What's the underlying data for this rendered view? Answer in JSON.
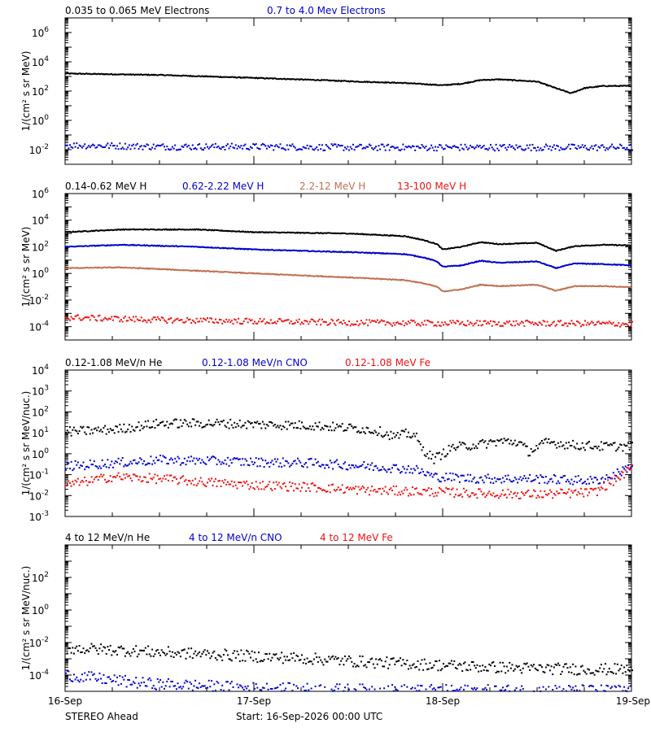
{
  "chart_data": [
    {
      "type": "scatter",
      "ylabel": "1/(cm² s sr MeV)",
      "yscale": "log",
      "ylim_log10": [
        -3,
        7
      ],
      "ytick_labels": [
        {
          "exp": 6,
          "base": "10",
          "sup": "6"
        },
        {
          "exp": 4,
          "base": "10",
          "sup": "4"
        },
        {
          "exp": 2,
          "base": "10",
          "sup": "2"
        },
        {
          "exp": 0,
          "base": "10",
          "sup": "0"
        },
        {
          "exp": -2,
          "base": "10",
          "sup": "-2"
        }
      ],
      "series": [
        {
          "name": "0.035 to 0.065 MeV Electrons",
          "color": "#000000",
          "style": "line",
          "points": [
            [
              0,
              3.2
            ],
            [
              0.5,
              3.1
            ],
            [
              1,
              2.9
            ],
            [
              1.35,
              2.75
            ],
            [
              1.55,
              2.65
            ],
            [
              1.8,
              2.55
            ],
            [
              2.0,
              2.4
            ],
            [
              2.1,
              2.5
            ],
            [
              2.2,
              2.75
            ],
            [
              2.3,
              2.8
            ],
            [
              2.5,
              2.65
            ],
            [
              2.6,
              2.2
            ],
            [
              2.68,
              1.85
            ],
            [
              2.75,
              2.2
            ],
            [
              2.85,
              2.35
            ],
            [
              3.0,
              2.35
            ]
          ]
        },
        {
          "name": "0.7 to 4.0 Mev Electrons",
          "color": "#0000cc",
          "style": "scatter",
          "points": [
            [
              0,
              -1.7
            ],
            [
              0.5,
              -1.8
            ],
            [
              1,
              -1.8
            ],
            [
              1.5,
              -1.85
            ],
            [
              2,
              -1.85
            ],
            [
              2.5,
              -1.85
            ],
            [
              3.0,
              -1.85
            ]
          ]
        }
      ]
    },
    {
      "type": "scatter",
      "ylabel": "1/(cm² s sr MeV)",
      "yscale": "log",
      "ylim_log10": [
        -5,
        6
      ],
      "ytick_labels": [
        {
          "exp": 6,
          "base": "10",
          "sup": "6"
        },
        {
          "exp": 4,
          "base": "10",
          "sup": "4"
        },
        {
          "exp": 2,
          "base": "10",
          "sup": "2"
        },
        {
          "exp": 0,
          "base": "10",
          "sup": "0"
        },
        {
          "exp": -2,
          "base": "10",
          "sup": "-2"
        },
        {
          "exp": -4,
          "base": "10",
          "sup": "-4"
        }
      ],
      "series": [
        {
          "name": "0.14-0.62 MeV H",
          "color": "#000000",
          "style": "line",
          "points": [
            [
              0,
              3.1
            ],
            [
              0.3,
              3.3
            ],
            [
              0.7,
              3.3
            ],
            [
              1,
              3.1
            ],
            [
              1.5,
              3.0
            ],
            [
              1.8,
              2.8
            ],
            [
              1.9,
              2.5
            ],
            [
              1.97,
              2.2
            ],
            [
              2.0,
              1.8
            ],
            [
              2.1,
              2.0
            ],
            [
              2.2,
              2.35
            ],
            [
              2.3,
              2.2
            ],
            [
              2.5,
              2.3
            ],
            [
              2.6,
              1.7
            ],
            [
              2.7,
              2.05
            ],
            [
              2.85,
              2.15
            ],
            [
              3.0,
              2.1
            ]
          ]
        },
        {
          "name": "0.62-2.22 MeV H",
          "color": "#0000cc",
          "style": "line",
          "points": [
            [
              0,
              2.0
            ],
            [
              0.3,
              2.15
            ],
            [
              0.7,
              2.0
            ],
            [
              1,
              1.8
            ],
            [
              1.5,
              1.6
            ],
            [
              1.8,
              1.45
            ],
            [
              1.9,
              1.2
            ],
            [
              1.97,
              0.9
            ],
            [
              2.0,
              0.5
            ],
            [
              2.1,
              0.6
            ],
            [
              2.2,
              0.95
            ],
            [
              2.3,
              0.8
            ],
            [
              2.5,
              0.9
            ],
            [
              2.6,
              0.4
            ],
            [
              2.7,
              0.75
            ],
            [
              2.85,
              0.7
            ],
            [
              3.0,
              0.6
            ]
          ]
        },
        {
          "name": "2.2-12 MeV H",
          "color": "#c07050",
          "style": "line",
          "points": [
            [
              0,
              0.4
            ],
            [
              0.3,
              0.45
            ],
            [
              0.7,
              0.2
            ],
            [
              1,
              0.0
            ],
            [
              1.5,
              -0.3
            ],
            [
              1.8,
              -0.5
            ],
            [
              1.9,
              -0.75
            ],
            [
              1.97,
              -1.0
            ],
            [
              2.0,
              -1.35
            ],
            [
              2.1,
              -1.2
            ],
            [
              2.2,
              -0.85
            ],
            [
              2.3,
              -0.95
            ],
            [
              2.5,
              -0.85
            ],
            [
              2.6,
              -1.3
            ],
            [
              2.7,
              -0.95
            ],
            [
              2.85,
              -0.95
            ],
            [
              3.0,
              -1.05
            ]
          ]
        },
        {
          "name": "13-100 MeV H",
          "color": "#ee1111",
          "style": "scatter",
          "points": [
            [
              0,
              -3.3
            ],
            [
              0.5,
              -3.5
            ],
            [
              1,
              -3.6
            ],
            [
              1.5,
              -3.7
            ],
            [
              2,
              -3.75
            ],
            [
              2.5,
              -3.75
            ],
            [
              3.0,
              -3.8
            ]
          ]
        }
      ]
    },
    {
      "type": "scatter",
      "ylabel": "1/(cm² s sr MeV/nuc.)",
      "yscale": "log",
      "ylim_log10": [
        -3,
        4
      ],
      "ytick_labels": [
        {
          "exp": 4,
          "base": "10",
          "sup": "4"
        },
        {
          "exp": 3,
          "base": "10",
          "sup": "3"
        },
        {
          "exp": 2,
          "base": "10",
          "sup": "2"
        },
        {
          "exp": 1,
          "base": "10",
          "sup": "1"
        },
        {
          "exp": 0,
          "base": "10",
          "sup": "0"
        },
        {
          "exp": -1,
          "base": "10",
          "sup": "-1"
        },
        {
          "exp": -2,
          "base": "10",
          "sup": "-2"
        },
        {
          "exp": -3,
          "base": "10",
          "sup": "-3"
        }
      ],
      "series": [
        {
          "name": "0.12-1.08 MeV/n He",
          "color": "#000000",
          "style": "scatter",
          "points": [
            [
              0,
              1.05
            ],
            [
              0.25,
              1.15
            ],
            [
              0.5,
              1.45
            ],
            [
              0.8,
              1.45
            ],
            [
              1.0,
              1.4
            ],
            [
              1.3,
              1.35
            ],
            [
              1.55,
              1.2
            ],
            [
              1.65,
              1.1
            ],
            [
              1.75,
              0.8
            ],
            [
              1.8,
              0.95
            ],
            [
              1.85,
              0.9
            ],
            [
              1.88,
              0.3
            ],
            [
              1.95,
              -0.25
            ],
            [
              2.05,
              0.3
            ],
            [
              2.2,
              0.45
            ],
            [
              2.3,
              0.6
            ],
            [
              2.4,
              0.55
            ],
            [
              2.45,
              0.1
            ],
            [
              2.55,
              0.55
            ],
            [
              2.7,
              0.4
            ],
            [
              2.85,
              0.35
            ],
            [
              3.0,
              0.35
            ]
          ]
        },
        {
          "name": "0.12-1.08 MeV/n CNO",
          "color": "#0000cc",
          "style": "scatter",
          "points": [
            [
              0,
              -0.6
            ],
            [
              0.25,
              -0.45
            ],
            [
              0.5,
              -0.3
            ],
            [
              0.8,
              -0.35
            ],
            [
              1.0,
              -0.4
            ],
            [
              1.3,
              -0.45
            ],
            [
              1.6,
              -0.6
            ],
            [
              1.85,
              -0.75
            ],
            [
              1.95,
              -1.1
            ],
            [
              2.2,
              -1.2
            ],
            [
              2.5,
              -1.2
            ],
            [
              2.8,
              -1.3
            ],
            [
              2.9,
              -1.05
            ],
            [
              3.0,
              -0.55
            ]
          ]
        },
        {
          "name": "0.12-1.08 MeV Fe",
          "color": "#ee1111",
          "style": "scatter",
          "points": [
            [
              0,
              -1.5
            ],
            [
              0.25,
              -1.1
            ],
            [
              0.5,
              -1.2
            ],
            [
              0.8,
              -1.4
            ],
            [
              1.0,
              -1.5
            ],
            [
              1.3,
              -1.6
            ],
            [
              1.6,
              -1.75
            ],
            [
              1.85,
              -1.8
            ],
            [
              2.2,
              -1.9
            ],
            [
              2.5,
              -1.95
            ],
            [
              2.8,
              -1.85
            ],
            [
              2.9,
              -1.3
            ],
            [
              3.0,
              -0.7
            ]
          ]
        }
      ]
    },
    {
      "type": "scatter",
      "ylabel": "1/(cm² s sr MeV/nuc.)",
      "yscale": "log",
      "ylim_log10": [
        -5,
        4
      ],
      "ytick_labels": [
        {
          "exp": 2,
          "base": "10",
          "sup": "2"
        },
        {
          "exp": 0,
          "base": "10",
          "sup": "0"
        },
        {
          "exp": -2,
          "base": "10",
          "sup": "-2"
        },
        {
          "exp": -4,
          "base": "10",
          "sup": "-4"
        }
      ],
      "series": [
        {
          "name": "4 to 12 MeV/n He",
          "color": "#000000",
          "style": "scatter",
          "points": [
            [
              0,
              -2.35
            ],
            [
              0.25,
              -2.45
            ],
            [
              0.5,
              -2.6
            ],
            [
              0.8,
              -2.75
            ],
            [
              1.0,
              -2.85
            ],
            [
              1.3,
              -3.0
            ],
            [
              1.6,
              -3.2
            ],
            [
              1.9,
              -3.35
            ],
            [
              2.2,
              -3.5
            ],
            [
              2.5,
              -3.6
            ],
            [
              2.8,
              -3.65
            ],
            [
              3.0,
              -3.65
            ]
          ]
        },
        {
          "name": "4 to 12 MeV/n CNO",
          "color": "#0000cc",
          "style": "scatter",
          "points": [
            [
              0,
              -4.0
            ],
            [
              0.4,
              -4.5
            ],
            [
              1.0,
              -4.8
            ],
            [
              1.5,
              -4.9
            ],
            [
              2.0,
              -4.95
            ],
            [
              3.0,
              -4.95
            ]
          ]
        },
        {
          "name": "4 to 12 MeV Fe",
          "color": "#ee1111",
          "style": "scatter",
          "points": []
        }
      ]
    }
  ],
  "x_axis": {
    "range_days": [
      0,
      3
    ],
    "tick_labels": [
      {
        "day": 0,
        "label": "16-Sep"
      },
      {
        "day": 1,
        "label": "17-Sep"
      },
      {
        "day": 2,
        "label": "18-Sep"
      },
      {
        "day": 3,
        "label": "19-Sep"
      }
    ]
  },
  "footer": {
    "spacecraft": "STEREO Ahead",
    "start_text": "Start: 16-Sep-2026 00:00 UTC"
  }
}
